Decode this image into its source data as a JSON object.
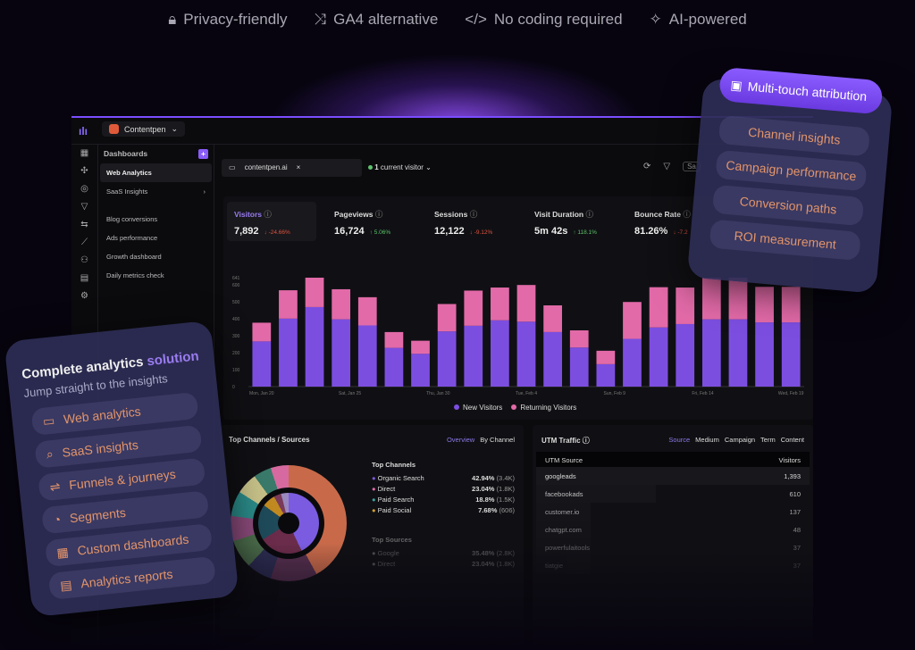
{
  "features": [
    {
      "icon": "lock-icon",
      "label": "Privacy-friendly"
    },
    {
      "icon": "branch-icon",
      "label": "GA4 alternative"
    },
    {
      "icon": "code-icon",
      "label": "No coding required"
    },
    {
      "icon": "sparkle-icon",
      "label": "AI-powered"
    }
  ],
  "app": {
    "project": "Contentpen",
    "sidebar_title": "Dashboards",
    "items": [
      "Web Analytics",
      "SaaS Insights",
      "Blog conversions",
      "Ads performance",
      "Growth dashboard",
      "Daily metrics check"
    ],
    "filter": "contentpen.ai",
    "current_visitors": "1",
    "current_label": "current visitor",
    "save_label": "Sa"
  },
  "kpis": [
    {
      "label": "Visitors",
      "value": "7,892",
      "delta": "-24.66%",
      "dir": "down"
    },
    {
      "label": "Pageviews",
      "value": "16,724",
      "delta": "5.06%",
      "dir": "up"
    },
    {
      "label": "Sessions",
      "value": "12,122",
      "delta": "-9.12%",
      "dir": "down"
    },
    {
      "label": "Visit Duration",
      "value": "5m 42s",
      "delta": "118.1%",
      "dir": "up"
    },
    {
      "label": "Bounce Rate",
      "value": "81.26%",
      "delta": "-7.2",
      "dir": "down"
    }
  ],
  "chart_data": {
    "type": "bar",
    "stacked": true,
    "ylim": [
      0,
      641
    ],
    "yticks": [
      "0",
      "100",
      "200",
      "300",
      "400",
      "500",
      "600",
      "641"
    ],
    "xticks": [
      "Mon, Jan 20",
      "Sat, Jan 25",
      "Thu, Jan 30",
      "Tue, Feb 4",
      "Sun, Feb 9",
      "Fri, Feb 14",
      "Wed, Feb 19"
    ],
    "series": [
      {
        "name": "New Visitors",
        "color": "#7c4ee0",
        "values": [
          266,
          400,
          468,
          396,
          360,
          228,
          193,
          325,
          358,
          390,
          382,
          321,
          230,
          132,
          281,
          348,
          368,
          396,
          396,
          378,
          378
        ]
      },
      {
        "name": "Returning Visitors",
        "color": "#e26aa8",
        "values": [
          110,
          167,
          173,
          177,
          166,
          93,
          77,
          161,
          207,
          193,
          216,
          157,
          101,
          79,
          217,
          237,
          215,
          245,
          245,
          209,
          209
        ]
      }
    ]
  },
  "channels": {
    "title": "Top Channels / Sources",
    "tabs": [
      "Overview",
      "By Channel"
    ],
    "top_channels_title": "Top Channels",
    "top_channels": [
      {
        "name": "Organic Search",
        "pct": "42.94%",
        "count": "(3.4K)",
        "color": "#7b5ce0"
      },
      {
        "name": "Direct",
        "pct": "23.04%",
        "count": "(1.8K)",
        "color": "#e26aa8"
      },
      {
        "name": "Paid Search",
        "pct": "18.8%",
        "count": "(1.5K)",
        "color": "#3aa39a"
      },
      {
        "name": "Paid Social",
        "pct": "7.68%",
        "count": "(606)",
        "color": "#d0a030"
      }
    ],
    "top_sources_title": "Top Sources",
    "top_sources": [
      {
        "name": "Google",
        "pct": "35.48%",
        "count": "(2.8K)"
      },
      {
        "name": "Direct",
        "pct": "23.04%",
        "count": "(1.8K)"
      }
    ]
  },
  "utm": {
    "title": "UTM Traffic",
    "tabs": [
      "Source",
      "Medium",
      "Campaign",
      "Term",
      "Content"
    ],
    "col_source": "UTM Source",
    "col_visitors": "Visitors",
    "rows": [
      {
        "source": "googleads",
        "visitors": "1,393"
      },
      {
        "source": "facebookads",
        "visitors": "610"
      },
      {
        "source": "customer.io",
        "visitors": "137"
      },
      {
        "source": "chatgpt.com",
        "visitors": "48"
      },
      {
        "source": "powerfulaitools",
        "visitors": "37"
      },
      {
        "source": "tiatgie",
        "visitors": "37"
      }
    ]
  },
  "left_card": {
    "title_a": "Complete analytics",
    "title_b": "solution",
    "subtitle": "Jump straight to the insights",
    "items": [
      "Web analytics",
      "SaaS insights",
      "Funnels & journeys",
      "Segments",
      "Custom dashboards",
      "Analytics reports"
    ]
  },
  "right_card": {
    "header": "Multi-touch attribution",
    "items": [
      "Channel insights",
      "Campaign performance",
      "Conversion paths",
      "ROI measurement"
    ]
  }
}
